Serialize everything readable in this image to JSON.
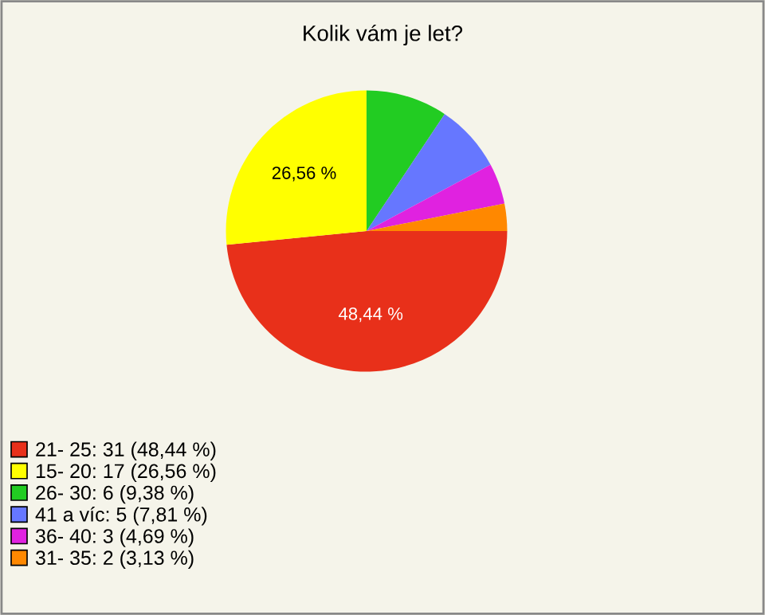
{
  "chart_data": {
    "type": "pie",
    "title": "Kolik vám je let?",
    "categories": [
      "21- 25: 31 (48,44 %)",
      "15- 20: 17 (26,56 %)",
      "26- 30: 6 (9,38 %)",
      "41 a víc: 5 (7,81 %)",
      "36- 40: 3 (4,69 %)",
      "31- 35: 2 (3,13 %)"
    ],
    "values": [
      48.44,
      26.56,
      9.38,
      7.81,
      4.69,
      3.13
    ],
    "colors": [
      "#e8301a",
      "#ffff00",
      "#22cc22",
      "#6677ff",
      "#e022e0",
      "#ff8800"
    ],
    "value_labels": [
      "48,44 %",
      "26,56 %",
      null,
      null,
      null,
      null
    ],
    "legend": "bottom left"
  }
}
